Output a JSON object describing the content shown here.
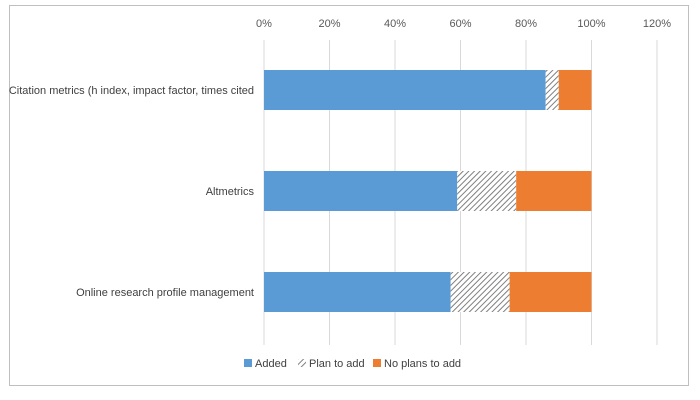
{
  "chart_data": {
    "type": "bar",
    "orientation": "horizontal",
    "stacked": true,
    "categories": [
      "Citation metrics (h index, impact factor, times cited",
      "Altmetrics",
      "Online research profile management"
    ],
    "series": [
      {
        "name": "Added",
        "values": [
          86,
          59,
          57
        ],
        "color": "#5b9bd5",
        "pattern": "solid"
      },
      {
        "name": "Plan to add",
        "values": [
          4,
          18,
          18
        ],
        "color": "#7f7f7f",
        "pattern": "diagonal-hatch"
      },
      {
        "name": "No plans to add",
        "values": [
          10,
          23,
          25
        ],
        "color": "#ed7d31",
        "pattern": "solid"
      }
    ],
    "xlim": [
      0,
      120
    ],
    "xticks": [
      0,
      20,
      40,
      60,
      80,
      100,
      120
    ],
    "xtick_labels": [
      "0%",
      "20%",
      "40%",
      "60%",
      "80%",
      "100%",
      "120%"
    ],
    "axis_position": "top",
    "grid": "vertical",
    "legend": "bottom"
  }
}
